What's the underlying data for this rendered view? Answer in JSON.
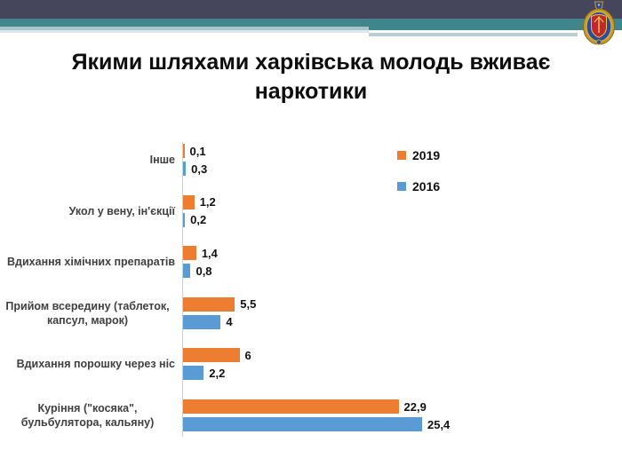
{
  "slide_title": "Якими шляхами харківська молодь вживає наркотики",
  "chart_data": {
    "type": "bar",
    "orientation": "horizontal",
    "title": "",
    "categories": [
      "Інше",
      "Укол у вену, ін'єкції",
      "Вдихання хімічних препаратів",
      "Прийом всередину (таблеток, капсул, марок)",
      "Вдихання порошку через ніс",
      "Куріння (\"косяка\", бульбулятора, кальяну)"
    ],
    "series": [
      {
        "name": "2019",
        "color": "#ED7D31",
        "values": [
          0.1,
          1.2,
          1.4,
          5.5,
          6,
          22.9
        ],
        "value_labels": [
          "0,1",
          "1,2",
          "1,4",
          "5,5",
          "6",
          "22,9"
        ]
      },
      {
        "name": "2016",
        "color": "#5B9BD5",
        "values": [
          0.3,
          0.2,
          0.8,
          4,
          2.2,
          25.4
        ],
        "value_labels": [
          "0,3",
          "0,2",
          "0,8",
          "4",
          "2,2",
          "25,4"
        ]
      }
    ],
    "legend": {
      "position": "inside-top-right",
      "entries": [
        "2019",
        "2016"
      ]
    },
    "gridlines": false,
    "value_axis_visible": false
  },
  "theme": {
    "header_navy": "#45465B",
    "header_teal": "#40858B",
    "header_light_teal": "#A6C4CA",
    "header_pale_teal": "#DCE8EA",
    "header_gray_teal": "#B8CED3",
    "bar_2019": "#ED7D31",
    "bar_2016": "#5B9BD5",
    "category_label_color": "#404040"
  }
}
